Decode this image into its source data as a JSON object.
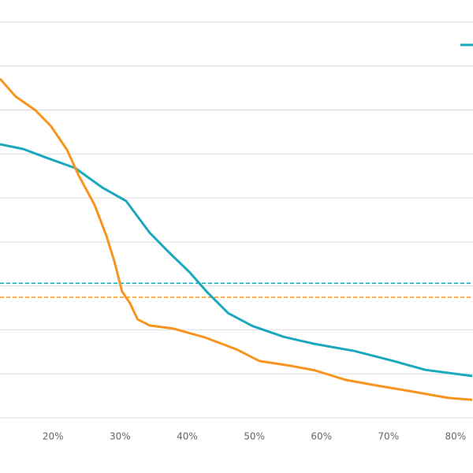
{
  "chart_data": {
    "type": "line",
    "xlim": [
      12.1,
      82.6
    ],
    "xticks": [
      {
        "value": 20,
        "label": "20%"
      },
      {
        "value": 30,
        "label": "30%"
      },
      {
        "value": 40,
        "label": "40%"
      },
      {
        "value": 50,
        "label": "50%"
      },
      {
        "value": 60,
        "label": "60%"
      },
      {
        "value": 70,
        "label": "70%"
      },
      {
        "value": 80,
        "label": "80%"
      }
    ],
    "ylim": [
      0,
      9.5
    ],
    "yticks": [
      0,
      1,
      2,
      3,
      4,
      5,
      6,
      7,
      8,
      9
    ],
    "grid": true,
    "series": [
      {
        "color": "#1aa8bc",
        "x": [
          12.1,
          15.6,
          19.1,
          23.3,
          27.4,
          30.9,
          34.4,
          37.3,
          40.3,
          42.9,
          46.1,
          49.7,
          54.4,
          59.0,
          64.9,
          70.8,
          75.5,
          82.5
        ],
        "values": [
          6.22,
          6.11,
          5.91,
          5.68,
          5.23,
          4.93,
          4.21,
          3.76,
          3.32,
          2.87,
          2.38,
          2.09,
          1.84,
          1.68,
          1.52,
          1.29,
          1.09,
          0.95
        ]
      },
      {
        "color": "#f7941d",
        "x": [
          12.1,
          14.4,
          17.4,
          19.7,
          22.1,
          23.8,
          26.2,
          28.0,
          29.1,
          30.3,
          31.5,
          32.6,
          34.4,
          37.9,
          42.6,
          47.3,
          50.8,
          55.5,
          59.0,
          63.7,
          68.4,
          73.1,
          79.0,
          82.5
        ],
        "values": [
          7.71,
          7.31,
          6.99,
          6.63,
          6.09,
          5.52,
          4.84,
          4.12,
          3.58,
          2.87,
          2.6,
          2.24,
          2.1,
          2.03,
          1.83,
          1.56,
          1.29,
          1.18,
          1.08,
          0.86,
          0.73,
          0.61,
          0.45,
          0.41
        ]
      }
    ],
    "reference_lines": [
      {
        "value": 3.06,
        "color": "#1aa8bc"
      },
      {
        "value": 2.74,
        "color": "#f7941d"
      }
    ]
  }
}
